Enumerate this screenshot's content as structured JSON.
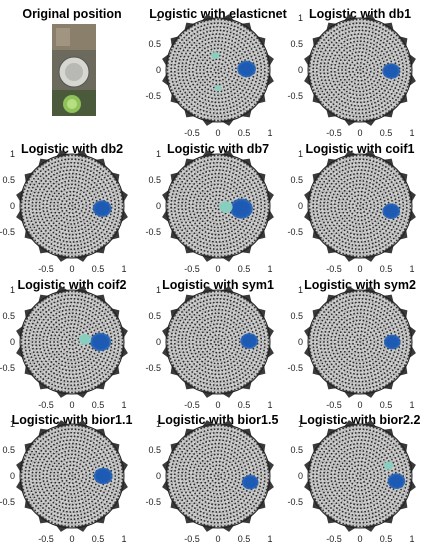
{
  "photo": {
    "title": "Original position",
    "description_icon": "photo-icon"
  },
  "axis_ticks": {
    "x": [
      "-0.5",
      "0",
      "0.5",
      "1"
    ],
    "y": [
      "1",
      "0.5",
      "0",
      "-0.5"
    ]
  },
  "panels": [
    {
      "title": "Logistic with elasticnet",
      "hot": [
        0.55,
        0.02
      ],
      "spread": 0.18,
      "extra": [
        [
          -0.05,
          0.28,
          0.06
        ],
        [
          0.0,
          -0.35,
          0.05
        ]
      ]
    },
    {
      "title": "Logistic with db1",
      "hot": [
        0.6,
        -0.02
      ],
      "spread": 0.17,
      "extra": []
    },
    {
      "title": "Logistic with db2",
      "hot": [
        0.58,
        -0.05
      ],
      "spread": 0.18,
      "extra": []
    },
    {
      "title": "Logistic with db7",
      "hot": [
        0.45,
        -0.05
      ],
      "spread": 0.22,
      "extra": [
        [
          0.15,
          -0.02,
          0.1
        ]
      ]
    },
    {
      "title": "Logistic with coif1",
      "hot": [
        0.6,
        -0.1
      ],
      "spread": 0.17,
      "extra": []
    },
    {
      "title": "Logistic with coif2",
      "hot": [
        0.55,
        0.0
      ],
      "spread": 0.2,
      "extra": [
        [
          0.25,
          0.05,
          0.09
        ]
      ]
    },
    {
      "title": "Logistic with sym1",
      "hot": [
        0.6,
        0.02
      ],
      "spread": 0.17,
      "extra": []
    },
    {
      "title": "Logistic with sym2",
      "hot": [
        0.62,
        0.0
      ],
      "spread": 0.16,
      "extra": []
    },
    {
      "title": "Logistic with bior1.1",
      "hot": [
        0.6,
        0.0
      ],
      "spread": 0.18,
      "extra": []
    },
    {
      "title": "Logistic with bior1.5",
      "hot": [
        0.62,
        -0.12
      ],
      "spread": 0.16,
      "extra": []
    },
    {
      "title": "Logistic with bior2.2",
      "hot": [
        0.7,
        -0.1
      ],
      "spread": 0.17,
      "extra": [
        [
          0.55,
          0.2,
          0.07
        ]
      ]
    }
  ]
}
